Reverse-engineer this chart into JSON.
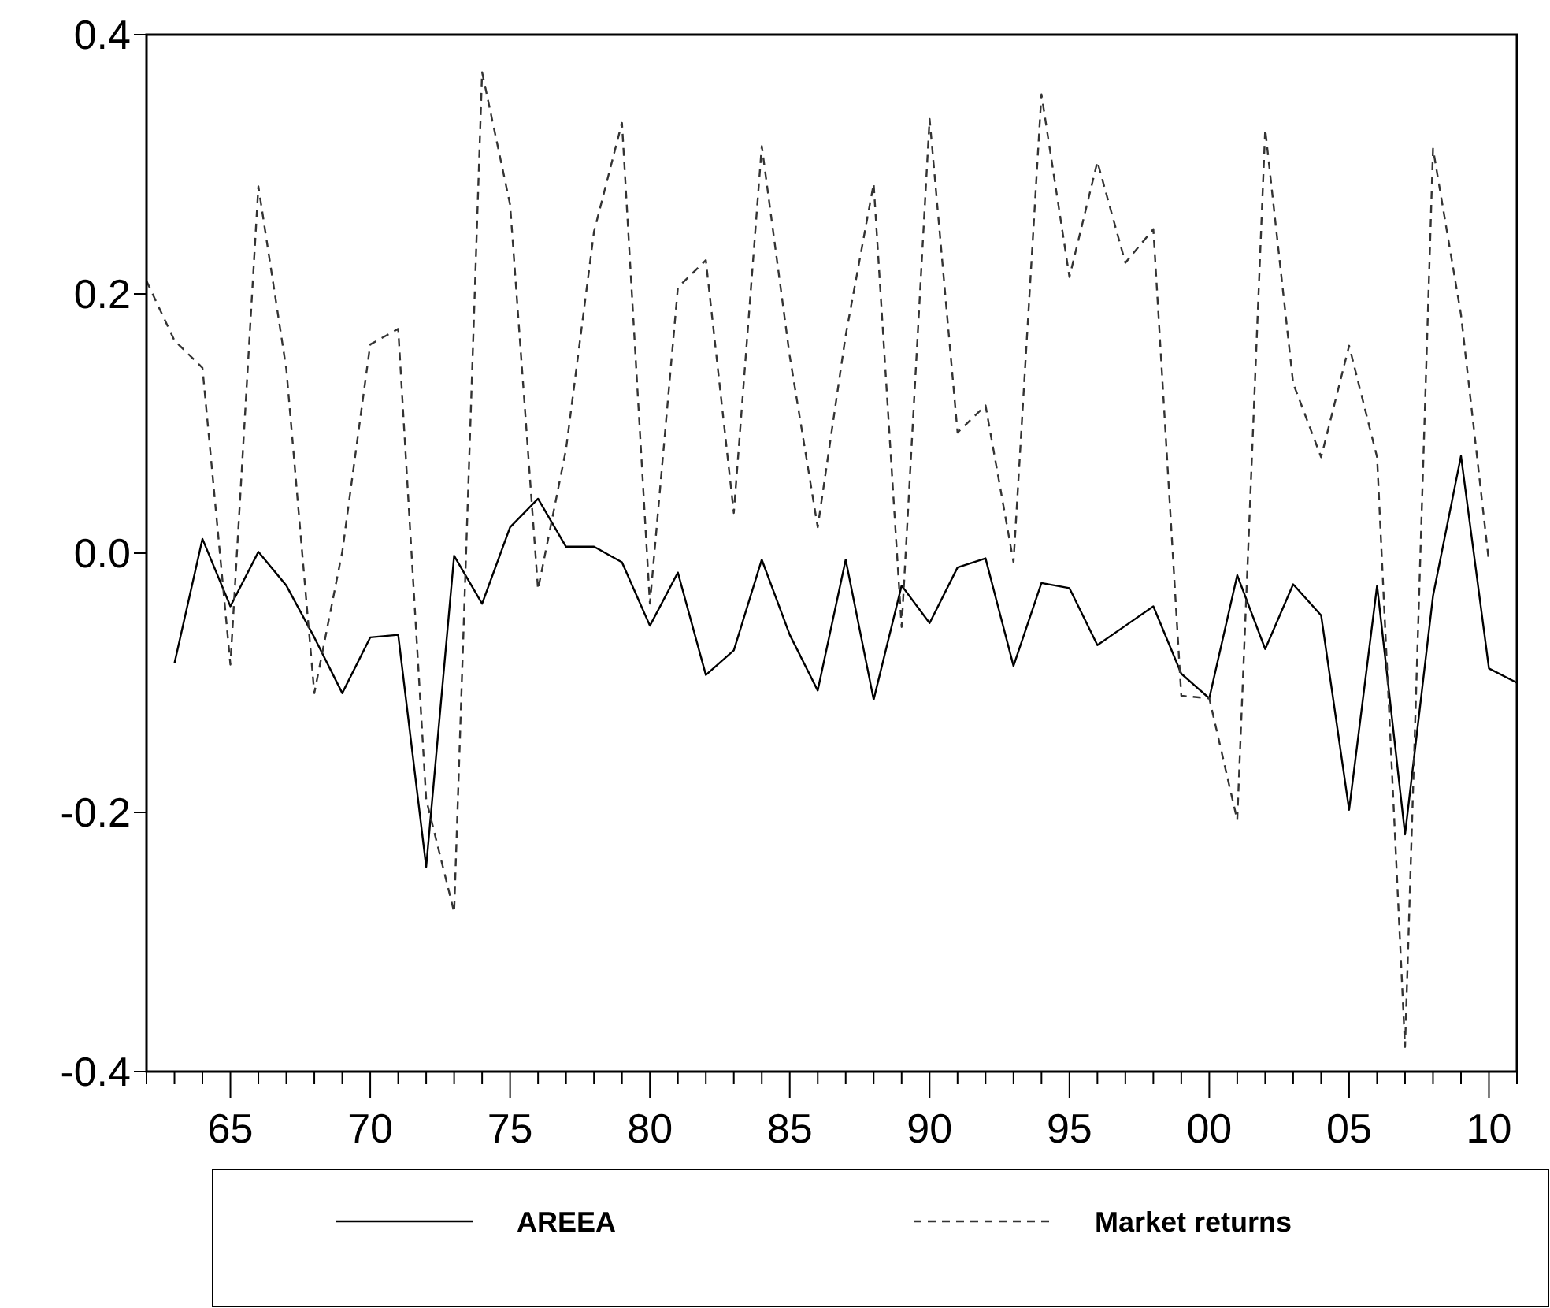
{
  "chart_data": {
    "type": "line",
    "x": [
      1962,
      1963,
      1964,
      1965,
      1966,
      1967,
      1968,
      1969,
      1970,
      1971,
      1972,
      1973,
      1974,
      1975,
      1976,
      1977,
      1978,
      1979,
      1980,
      1981,
      1982,
      1983,
      1984,
      1985,
      1986,
      1987,
      1988,
      1989,
      1990,
      1991,
      1992,
      1993,
      1994,
      1995,
      1996,
      1997,
      1998,
      1999,
      2000,
      2001,
      2002,
      2003,
      2004,
      2005,
      2006,
      2007,
      2008,
      2009,
      2010,
      2011
    ],
    "series": [
      {
        "name": "AREEA",
        "color": "#000000",
        "line_style": "solid",
        "values": [
          null,
          -0.085,
          0.011,
          -0.041,
          0.001,
          -0.025,
          -0.065,
          -0.108,
          -0.065,
          -0.063,
          -0.242,
          -0.002,
          -0.039,
          0.02,
          0.042,
          0.005,
          0.005,
          -0.007,
          -0.056,
          -0.015,
          -0.094,
          -0.075,
          -0.005,
          -0.063,
          -0.106,
          -0.005,
          -0.113,
          -0.025,
          -0.054,
          -0.011,
          -0.004,
          -0.087,
          -0.023,
          -0.027,
          -0.071,
          -0.056,
          -0.041,
          -0.093,
          -0.112,
          -0.017,
          -0.074,
          -0.024,
          -0.048,
          -0.198,
          -0.025,
          -0.217,
          -0.033,
          0.075,
          -0.089,
          -0.1
        ]
      },
      {
        "name": "Market returns",
        "color": "#333333",
        "line_style": "dashed",
        "values": [
          0.21,
          0.164,
          0.143,
          -0.086,
          0.283,
          0.142,
          -0.108,
          0.001,
          0.161,
          0.173,
          -0.19,
          -0.277,
          0.371,
          0.269,
          -0.028,
          0.08,
          0.248,
          0.332,
          -0.039,
          0.205,
          0.226,
          0.031,
          0.314,
          0.152,
          0.02,
          0.168,
          0.285,
          -0.057,
          0.335,
          0.093,
          0.114,
          -0.007,
          0.354,
          0.213,
          0.302,
          0.224,
          0.25,
          -0.11,
          -0.112,
          -0.206,
          0.327,
          0.131,
          0.074,
          0.16,
          0.074,
          -0.381,
          0.312,
          0.184,
          -0.007,
          null
        ]
      }
    ],
    "xlim": [
      1962,
      2011
    ],
    "xticks": [
      {
        "value": 1962,
        "label": null
      },
      {
        "value": 1963,
        "label": null
      },
      {
        "value": 1964,
        "label": null
      },
      {
        "value": 1965,
        "label": "65"
      },
      {
        "value": 1966,
        "label": null
      },
      {
        "value": 1967,
        "label": null
      },
      {
        "value": 1968,
        "label": null
      },
      {
        "value": 1969,
        "label": null
      },
      {
        "value": 1970,
        "label": "70"
      },
      {
        "value": 1971,
        "label": null
      },
      {
        "value": 1972,
        "label": null
      },
      {
        "value": 1973,
        "label": null
      },
      {
        "value": 1974,
        "label": null
      },
      {
        "value": 1975,
        "label": "75"
      },
      {
        "value": 1976,
        "label": null
      },
      {
        "value": 1977,
        "label": null
      },
      {
        "value": 1978,
        "label": null
      },
      {
        "value": 1979,
        "label": null
      },
      {
        "value": 1980,
        "label": "80"
      },
      {
        "value": 1981,
        "label": null
      },
      {
        "value": 1982,
        "label": null
      },
      {
        "value": 1983,
        "label": null
      },
      {
        "value": 1984,
        "label": null
      },
      {
        "value": 1985,
        "label": "85"
      },
      {
        "value": 1986,
        "label": null
      },
      {
        "value": 1987,
        "label": null
      },
      {
        "value": 1988,
        "label": null
      },
      {
        "value": 1989,
        "label": null
      },
      {
        "value": 1990,
        "label": "90"
      },
      {
        "value": 1991,
        "label": null
      },
      {
        "value": 1992,
        "label": null
      },
      {
        "value": 1993,
        "label": null
      },
      {
        "value": 1994,
        "label": null
      },
      {
        "value": 1995,
        "label": "95"
      },
      {
        "value": 1996,
        "label": null
      },
      {
        "value": 1997,
        "label": null
      },
      {
        "value": 1998,
        "label": null
      },
      {
        "value": 1999,
        "label": null
      },
      {
        "value": 2000,
        "label": "00"
      },
      {
        "value": 2001,
        "label": null
      },
      {
        "value": 2002,
        "label": null
      },
      {
        "value": 2003,
        "label": null
      },
      {
        "value": 2004,
        "label": null
      },
      {
        "value": 2005,
        "label": "05"
      },
      {
        "value": 2006,
        "label": null
      },
      {
        "value": 2007,
        "label": null
      },
      {
        "value": 2008,
        "label": null
      },
      {
        "value": 2009,
        "label": null
      },
      {
        "value": 2010,
        "label": "10"
      },
      {
        "value": 2011,
        "label": null
      }
    ],
    "ylim": [
      -0.4,
      0.4
    ],
    "yticks": [
      {
        "value": -0.4,
        "label": "-0.4"
      },
      {
        "value": -0.2,
        "label": "-0.2"
      },
      {
        "value": 0,
        "label": "0.0"
      },
      {
        "value": 0.2,
        "label": "0.2"
      },
      {
        "value": 0.4,
        "label": "0.4"
      }
    ],
    "grid": false,
    "legend": "bottom",
    "marker": "none"
  }
}
